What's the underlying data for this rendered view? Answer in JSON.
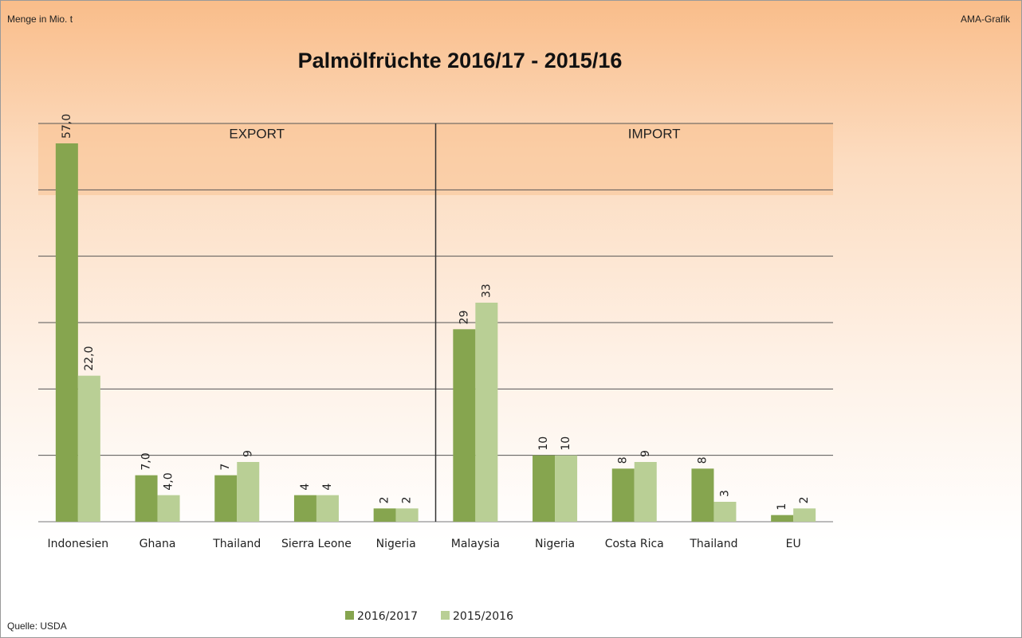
{
  "chart_data": {
    "type": "bar",
    "title": "Palmölfrüchte 2016/17 - 2015/16",
    "unit_label": "Menge  in Mio. t",
    "credit": "AMA-Grafik",
    "source": "Quelle: USDA",
    "annotations": [
      "EXPORT",
      "IMPORT"
    ],
    "categories": [
      "Indonesien",
      "Ghana",
      "Thailand",
      "Sierra Leone",
      "Nigeria",
      "Malaysia",
      "Nigeria",
      "Costa Rica",
      "Thailand",
      "EU"
    ],
    "series": [
      {
        "name": "2016/2017",
        "color": "#86a54f",
        "values": [
          57,
          7,
          7,
          4,
          2,
          29,
          10,
          8,
          8,
          1
        ],
        "value_labels": [
          "57,0",
          "7,0",
          "7",
          "4",
          "2",
          "29",
          "10",
          "8",
          "8",
          "1"
        ]
      },
      {
        "name": "2015/2016",
        "color": "#b9cf95",
        "values": [
          22,
          4,
          9,
          4,
          2,
          33,
          10,
          9,
          3,
          2
        ],
        "value_labels": [
          "22,0",
          "4,0",
          "9",
          "4",
          "2",
          "33",
          "10",
          "9",
          "3",
          "2"
        ]
      }
    ],
    "ylim": [
      0,
      60
    ],
    "yticks": [
      0,
      10,
      20,
      30,
      40,
      50,
      60
    ],
    "grid": true,
    "legend": "bottom"
  }
}
